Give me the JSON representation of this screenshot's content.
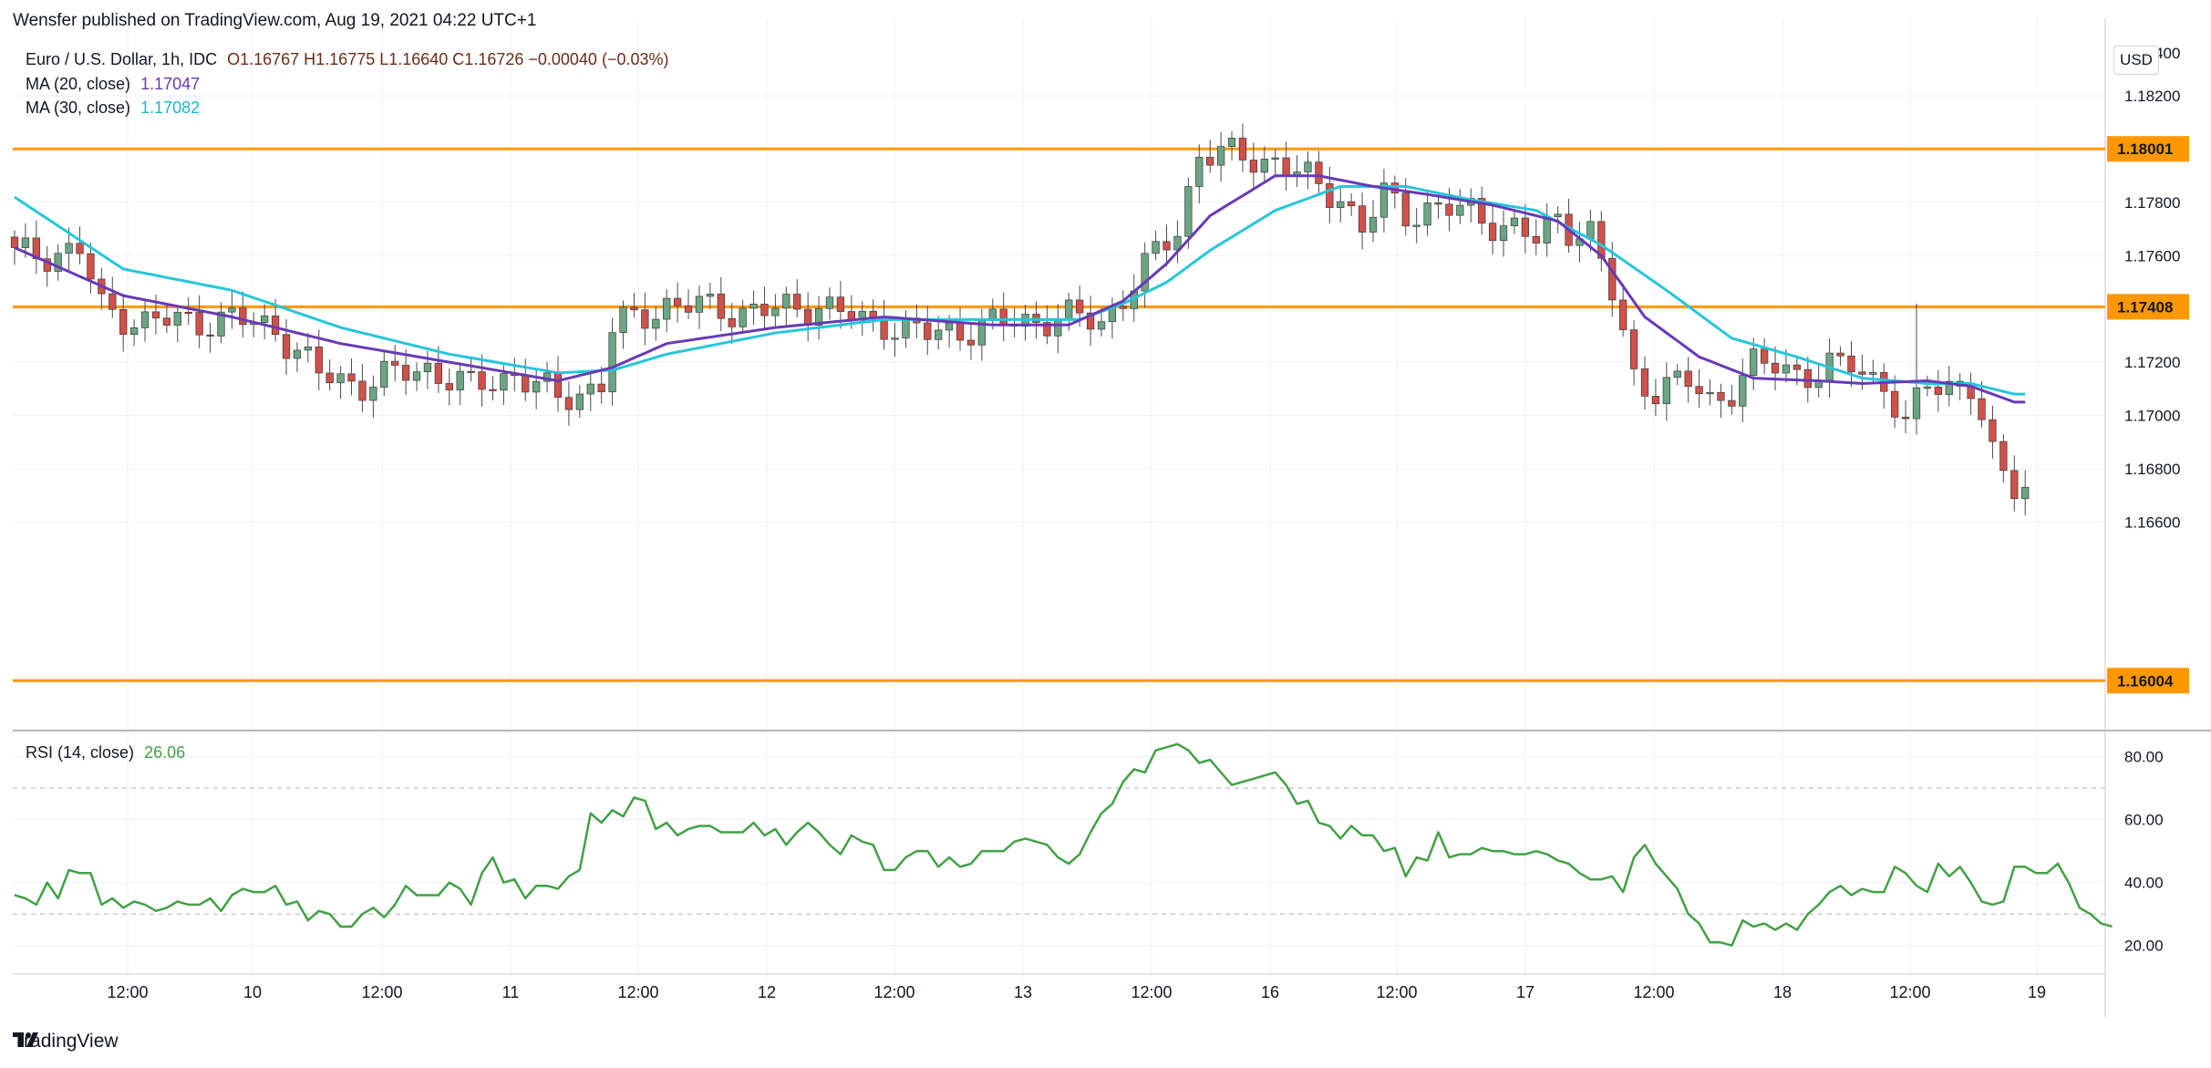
{
  "header": {
    "published": "Wensfer published on TradingView.com, Aug 19, 2021 04:22 UTC+1"
  },
  "legend": {
    "symbol": "Euro / U.S. Dollar, 1h, IDC",
    "ohlc": "O1.16767  H1.16775  L1.16640  C1.16726  −0.00040 (−0.03%)",
    "ma20_label": "MA (20, close)",
    "ma20_value": "1.17047",
    "ma30_label": "MA (30, close)",
    "ma30_value": "1.17082",
    "rsi_label": "RSI (14, close)",
    "rsi_value": "26.06"
  },
  "currency_button": "USD",
  "brand": "TradingView",
  "colors": {
    "up": "#6ba583",
    "down": "#d0504a",
    "ma20": "#673ab7",
    "ma30": "#26c6da",
    "level": "#ff9800",
    "rsi": "#43a047"
  },
  "chart_data": [
    {
      "type": "candlestick",
      "title": "Euro / U.S. Dollar, 1h, IDC",
      "x_ticks": [
        "12:00",
        "10",
        "12:00",
        "11",
        "12:00",
        "12",
        "12:00",
        "13",
        "12:00",
        "16",
        "12:00",
        "17",
        "12:00",
        "18",
        "12:00",
        "19"
      ],
      "y_ticks": [
        "1.16600",
        "1.16800",
        "1.17000",
        "1.17200",
        "1.17400",
        "1.17600",
        "1.17800",
        "1.18000",
        "1.18200"
      ],
      "ylim": [
        1.1582,
        1.1843
      ],
      "horizontal_levels": [
        {
          "value": 1.18001,
          "label": "1.18001"
        },
        {
          "value": 1.17408,
          "label": "1.17408"
        },
        {
          "value": 1.16004,
          "label": "1.16004"
        }
      ],
      "anchors": [
        [
          0,
          1.176
        ],
        [
          6,
          1.1762
        ],
        [
          8,
          1.174
        ],
        [
          12,
          1.1735
        ],
        [
          20,
          1.1736
        ],
        [
          24,
          1.1733
        ],
        [
          28,
          1.1715
        ],
        [
          32,
          1.1712
        ],
        [
          38,
          1.1718
        ],
        [
          42,
          1.171
        ],
        [
          46,
          1.1716
        ],
        [
          50,
          1.1706
        ],
        [
          54,
          1.1712
        ],
        [
          55,
          1.1732
        ],
        [
          60,
          1.1742
        ],
        [
          64,
          1.174
        ],
        [
          70,
          1.1739
        ],
        [
          74,
          1.1742
        ],
        [
          78,
          1.1735
        ],
        [
          80,
          1.1735
        ],
        [
          84,
          1.173
        ],
        [
          88,
          1.1733
        ],
        [
          96,
          1.1737
        ],
        [
          100,
          1.1735
        ],
        [
          103,
          1.175
        ],
        [
          107,
          1.177
        ],
        [
          109,
          1.1799
        ],
        [
          112,
          1.1797
        ],
        [
          116,
          1.1796
        ],
        [
          118,
          1.1791
        ],
        [
          120,
          1.1785
        ],
        [
          122,
          1.1783
        ],
        [
          124,
          1.177
        ],
        [
          126,
          1.1782
        ],
        [
          128,
          1.1776
        ],
        [
          130,
          1.1778
        ],
        [
          134,
          1.1776
        ],
        [
          138,
          1.177
        ],
        [
          140,
          1.1765
        ],
        [
          142,
          1.1775
        ],
        [
          143,
          1.1771
        ],
        [
          145,
          1.1768
        ],
        [
          147,
          1.1745
        ],
        [
          149,
          1.1715
        ],
        [
          151,
          1.171
        ],
        [
          154,
          1.1712
        ],
        [
          156,
          1.1706
        ],
        [
          158,
          1.171
        ],
        [
          160,
          1.1718
        ],
        [
          162,
          1.1719
        ],
        [
          166,
          1.1715
        ],
        [
          169,
          1.172
        ],
        [
          172,
          1.1712
        ],
        [
          174,
          1.1694
        ],
        [
          175,
          1.1704
        ],
        [
          176,
          1.1713
        ],
        [
          178,
          1.1712
        ],
        [
          180,
          1.171
        ],
        [
          182,
          1.1683
        ],
        [
          184,
          1.1675
        ],
        [
          185,
          1.1673
        ]
      ],
      "ma20_anchors": [
        [
          0,
          1.1763
        ],
        [
          10,
          1.1745
        ],
        [
          20,
          1.1737
        ],
        [
          30,
          1.1727
        ],
        [
          40,
          1.172
        ],
        [
          50,
          1.1713
        ],
        [
          55,
          1.1718
        ],
        [
          60,
          1.1727
        ],
        [
          70,
          1.1733
        ],
        [
          80,
          1.1737
        ],
        [
          90,
          1.1734
        ],
        [
          97,
          1.1734
        ],
        [
          102,
          1.1743
        ],
        [
          106,
          1.1757
        ],
        [
          110,
          1.1775
        ],
        [
          116,
          1.179
        ],
        [
          120,
          1.179
        ],
        [
          125,
          1.1786
        ],
        [
          130,
          1.1783
        ],
        [
          136,
          1.1779
        ],
        [
          142,
          1.1773
        ],
        [
          146,
          1.176
        ],
        [
          150,
          1.1737
        ],
        [
          155,
          1.1722
        ],
        [
          160,
          1.1714
        ],
        [
          166,
          1.1713
        ],
        [
          170,
          1.1712
        ],
        [
          176,
          1.1713
        ],
        [
          180,
          1.1711
        ],
        [
          184,
          1.1705
        ]
      ],
      "ma30_anchors": [
        [
          0,
          1.1782
        ],
        [
          10,
          1.1755
        ],
        [
          20,
          1.1747
        ],
        [
          30,
          1.1733
        ],
        [
          40,
          1.1723
        ],
        [
          50,
          1.1716
        ],
        [
          55,
          1.1717
        ],
        [
          60,
          1.1723
        ],
        [
          70,
          1.1731
        ],
        [
          80,
          1.1736
        ],
        [
          90,
          1.1736
        ],
        [
          98,
          1.1736
        ],
        [
          102,
          1.1742
        ],
        [
          106,
          1.175
        ],
        [
          110,
          1.1762
        ],
        [
          116,
          1.1777
        ],
        [
          122,
          1.1786
        ],
        [
          128,
          1.1786
        ],
        [
          134,
          1.1781
        ],
        [
          140,
          1.1777
        ],
        [
          146,
          1.1764
        ],
        [
          152,
          1.1747
        ],
        [
          158,
          1.1729
        ],
        [
          164,
          1.1722
        ],
        [
          170,
          1.1714
        ],
        [
          176,
          1.1712
        ],
        [
          180,
          1.1712
        ],
        [
          184,
          1.1708
        ]
      ]
    },
    {
      "type": "line",
      "title": "RSI (14, close)",
      "y_ticks": [
        "20.00",
        "40.00",
        "60.00",
        "80.00"
      ],
      "ylim": [
        15,
        88
      ],
      "reference_levels": [
        30,
        70
      ],
      "values": [
        36,
        35,
        33,
        40,
        35,
        44,
        43,
        43,
        33,
        35,
        32,
        34,
        33,
        31,
        32,
        34,
        33,
        33,
        35,
        31,
        36,
        38,
        37,
        37,
        39,
        33,
        34,
        28,
        31,
        30,
        26,
        26,
        30,
        32,
        29,
        33,
        39,
        36,
        36,
        36,
        40,
        38,
        33,
        43,
        48,
        40,
        41,
        35,
        39,
        39,
        38,
        42,
        44,
        62,
        59,
        63,
        61,
        67,
        66,
        57,
        59,
        55,
        57,
        58,
        58,
        56,
        56,
        56,
        59,
        55,
        57,
        52,
        56,
        59,
        56,
        52,
        49,
        55,
        53,
        52,
        44,
        44,
        48,
        50,
        50,
        45,
        48,
        45,
        46,
        50,
        50,
        50,
        53,
        54,
        53,
        52,
        48,
        46,
        49,
        56,
        62,
        65,
        72,
        76,
        75,
        82,
        83,
        84,
        82,
        78,
        79,
        75,
        71,
        72,
        73,
        74,
        75,
        71,
        65,
        66,
        59,
        58,
        54,
        58,
        55,
        55,
        50,
        51,
        42,
        48,
        47,
        56,
        48,
        49,
        49,
        51,
        50,
        50,
        49,
        49,
        50,
        49,
        47,
        46,
        43,
        41,
        41,
        42,
        37,
        48,
        52,
        46,
        42,
        38,
        30,
        27,
        21,
        21,
        20,
        28,
        26,
        27,
        25,
        27,
        25,
        30,
        33,
        37,
        39,
        36,
        38,
        37,
        37,
        45,
        43,
        39,
        37,
        46,
        42,
        45,
        40,
        34,
        33,
        34,
        45,
        45,
        43,
        43,
        46,
        40,
        32,
        30,
        27,
        26.06
      ]
    }
  ]
}
